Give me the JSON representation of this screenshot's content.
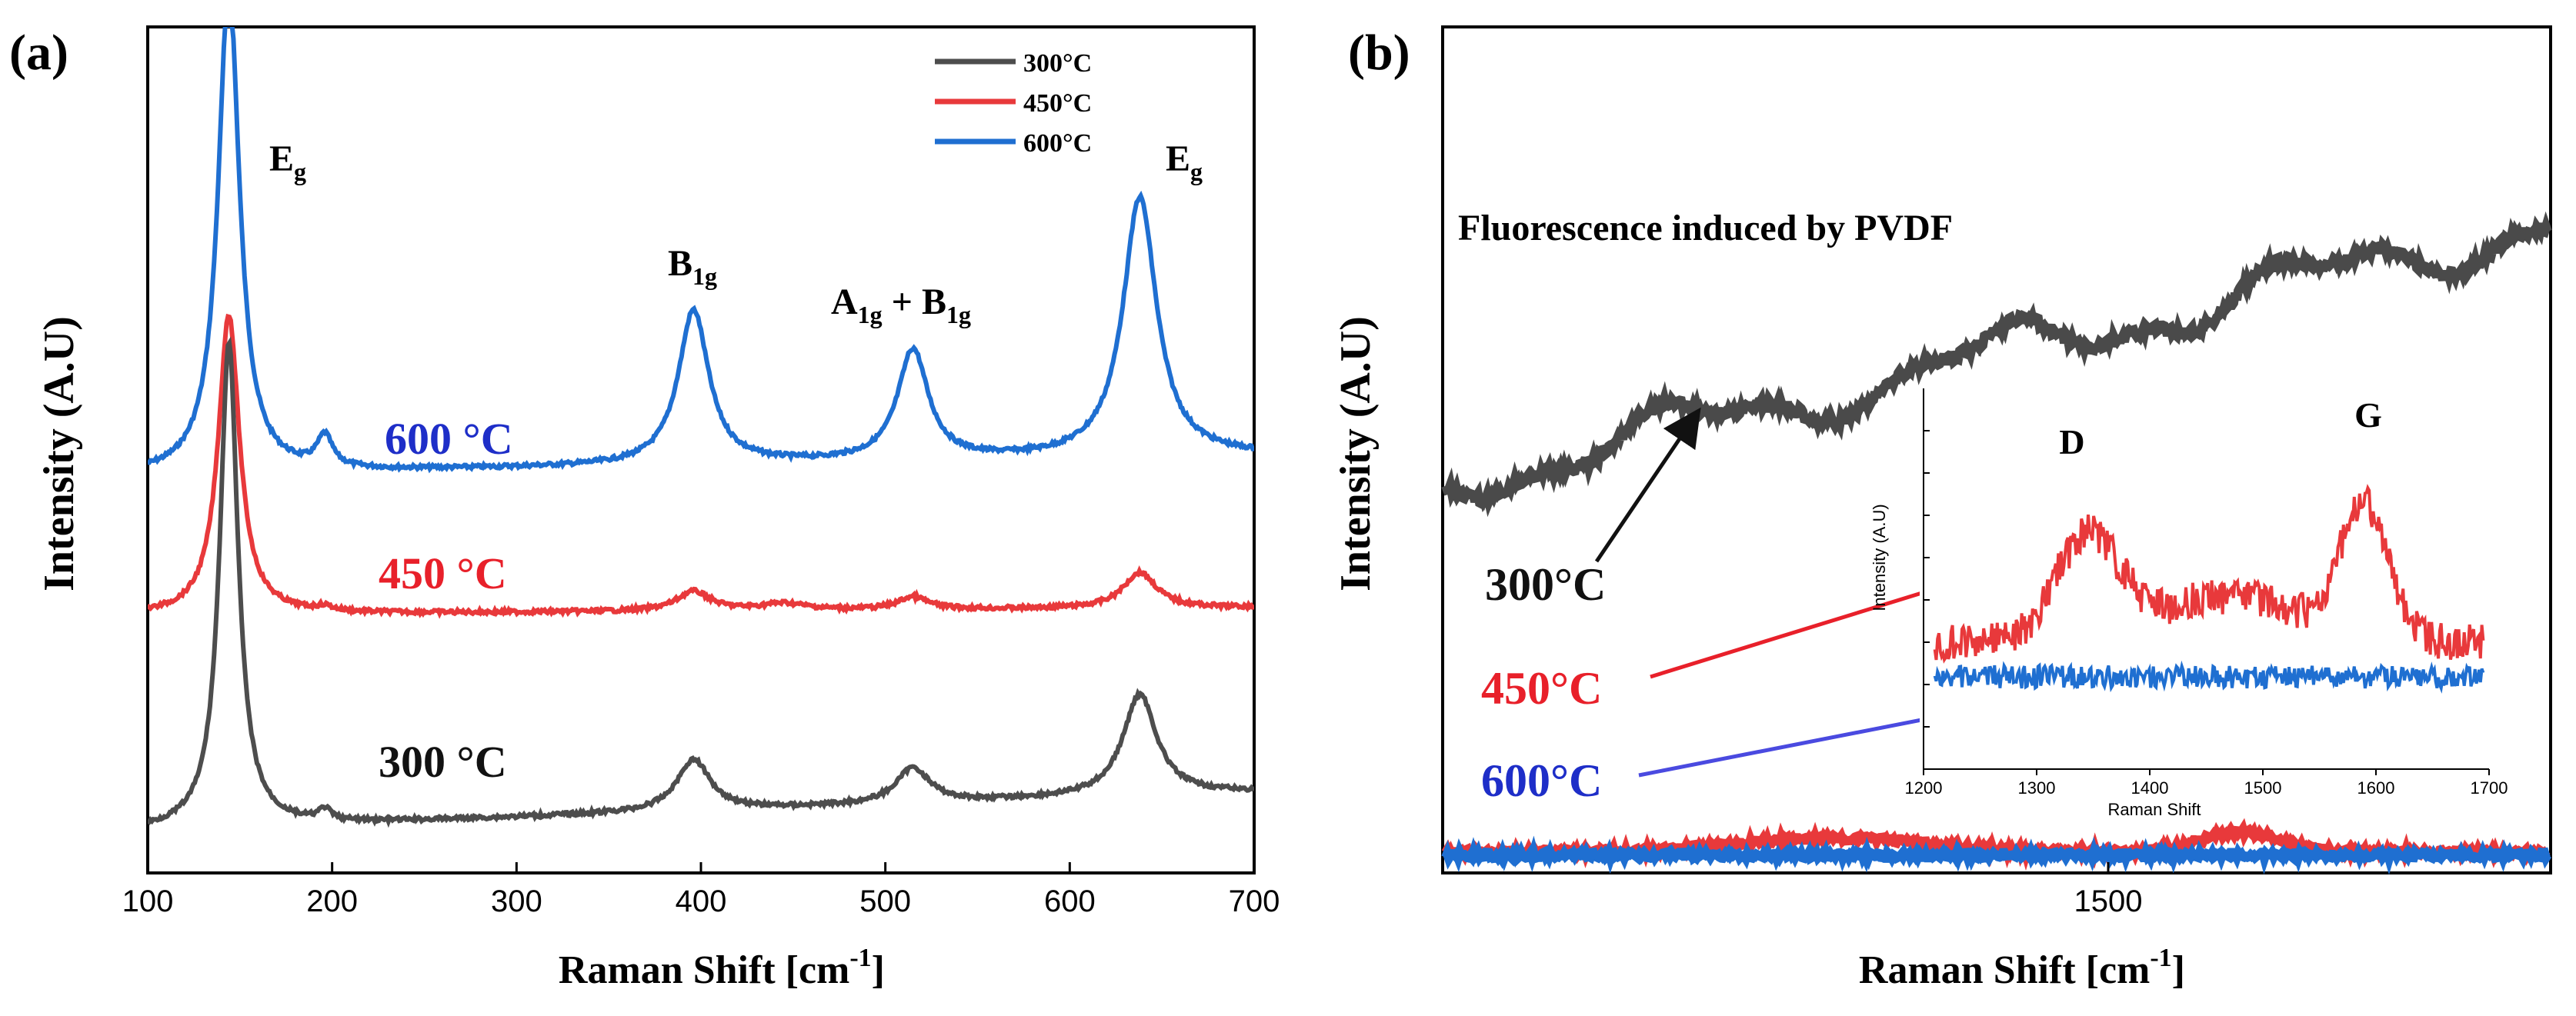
{
  "chart_data": [
    {
      "panel": "(a)",
      "type": "line",
      "xlabel": "Raman Shift [cm",
      "xlabel_sup": "-1",
      "xlabel_end": "]",
      "ylabel": "Intensity (A.U)",
      "xlim": [
        100,
        700
      ],
      "xticks": [
        100,
        200,
        300,
        400,
        500,
        600,
        700
      ],
      "legend": {
        "position": "top-right",
        "entries": [
          {
            "label": "300°C",
            "color": "#4d4d4d"
          },
          {
            "label": "450°C",
            "color": "#e8393b"
          },
          {
            "label": "600°C",
            "color": "#1f6fd1"
          }
        ]
      },
      "series": [
        {
          "name": "600 °C",
          "color": "#1f6fd1",
          "label_color": "#1e2ec8",
          "peaks": [
            {
              "x": 144,
              "height": 1.9,
              "width": 7
            },
            {
              "x": 196,
              "height": 0.12,
              "width": 5
            },
            {
              "x": 396,
              "height": 0.6,
              "width": 10
            },
            {
              "x": 515,
              "height": 0.43,
              "width": 10
            },
            {
              "x": 638,
              "height": 1.01,
              "width": 11
            }
          ],
          "baseline": 0.0
        },
        {
          "name": "450 °C",
          "color": "#e8393b",
          "label_color": "#e8202a",
          "peaks": [
            {
              "x": 144,
              "height": 2.6,
              "width": 7
            },
            {
              "x": 196,
              "height": 0.04,
              "width": 5
            },
            {
              "x": 396,
              "height": 0.17,
              "width": 11
            },
            {
              "x": 445,
              "height": 0.06,
              "width": 15
            },
            {
              "x": 515,
              "height": 0.11,
              "width": 10
            },
            {
              "x": 638,
              "height": 0.31,
              "width": 11
            }
          ],
          "baseline": 0.0
        },
        {
          "name": "300 °C",
          "color": "#4d4d4d",
          "label_color": "#111111",
          "peaks": [
            {
              "x": 144,
              "height": 3.0,
              "width": 6
            },
            {
              "x": 196,
              "height": 0.07,
              "width": 4
            },
            {
              "x": 396,
              "height": 0.32,
              "width": 11
            },
            {
              "x": 515,
              "height": 0.22,
              "width": 11
            },
            {
              "x": 638,
              "height": 0.63,
              "width": 11
            }
          ],
          "baseline": 0.0
        }
      ],
      "annotations": [
        {
          "text": "E",
          "sub": "g",
          "x": 165,
          "pos": "after-main-peak"
        },
        {
          "text": "B",
          "sub": "1g",
          "x": 396
        },
        {
          "text": "A",
          "sub": "1g",
          "text2": " + B",
          "sub2": "1g",
          "x": 515
        },
        {
          "text": "E",
          "sub": "g",
          "x": 650
        }
      ]
    },
    {
      "panel": "(b)",
      "type": "line",
      "xlabel": "Raman Shift [cm",
      "xlabel_sup": "-1",
      "xlabel_end": "]",
      "ylabel": "Intensity (A.U)",
      "xticks": [
        1500
      ],
      "title": "Fluorescence induced by PVDF",
      "series": [
        {
          "name": "300°C",
          "color": "#4a4a4a",
          "label_color": "#111111",
          "description": "broad rising fluorescence background"
        },
        {
          "name": "450°C",
          "color": "#e8393b",
          "label_color": "#e8202a"
        },
        {
          "name": "600°C",
          "color": "#1f6fd1",
          "label_color": "#1e2ec8"
        }
      ],
      "inset": {
        "type": "line",
        "xlabel": "Raman Shift",
        "ylabel": "Intensity (A.U)",
        "xlim": [
          1200,
          1700
        ],
        "xticks": [
          1200,
          1300,
          1400,
          1500,
          1600,
          1700
        ],
        "band_labels": [
          {
            "text": "D",
            "x": 1340
          },
          {
            "text": "G",
            "x": 1590
          }
        ],
        "series": [
          {
            "name": "450°C",
            "color": "#e8393b",
            "peaks": [
              {
                "x": 1345,
                "height": 0.58,
                "width": 40
              },
              {
                "x": 1590,
                "height": 0.75,
                "width": 30
              }
            ]
          },
          {
            "name": "600°C",
            "color": "#1f6fd1",
            "peaks": []
          }
        ]
      }
    }
  ],
  "labels": {
    "panel_a": "(a)",
    "panel_b": "(b)"
  }
}
